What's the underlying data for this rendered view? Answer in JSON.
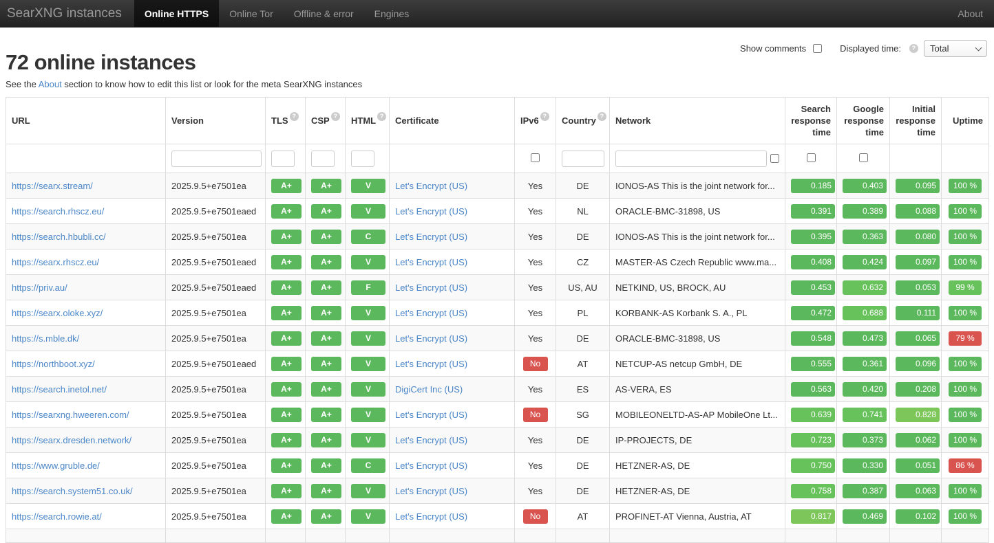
{
  "navbar": {
    "brand": "SearXNG instances",
    "tabs": [
      {
        "label": "Online HTTPS",
        "active": true
      },
      {
        "label": "Online Tor",
        "active": false
      },
      {
        "label": "Offline & error",
        "active": false
      },
      {
        "label": "Engines",
        "active": false
      }
    ],
    "about_label": "About"
  },
  "controls": {
    "show_comments_label": "Show comments",
    "displayed_time_label": "Displayed time:",
    "time_select_value": "Total"
  },
  "page": {
    "title": "72 online instances",
    "subtitle_prefix": "See the ",
    "subtitle_link": "About",
    "subtitle_suffix": " section to know how to edit this list or look for the meta SearXNG instances"
  },
  "colors": {
    "green": "#5cb85c",
    "green_light": "#68c25c",
    "green_lighter": "#7cc65a",
    "red": "#d9534f",
    "link_blue": "#4a86c8"
  },
  "table": {
    "columns": [
      {
        "label": "URL",
        "help": false,
        "align": "left"
      },
      {
        "label": "Version",
        "help": false,
        "align": "left"
      },
      {
        "label": "TLS",
        "help": true,
        "align": "left"
      },
      {
        "label": "CSP",
        "help": true,
        "align": "left"
      },
      {
        "label": "HTML",
        "help": true,
        "align": "left"
      },
      {
        "label": "Certificate",
        "help": false,
        "align": "left"
      },
      {
        "label": "IPv6",
        "help": true,
        "align": "left"
      },
      {
        "label": "Country",
        "help": true,
        "align": "left"
      },
      {
        "label": "Network",
        "help": false,
        "align": "left"
      },
      {
        "label": "Search response time",
        "help": false,
        "align": "right"
      },
      {
        "label": "Google response time",
        "help": false,
        "align": "right"
      },
      {
        "label": "Initial response time",
        "help": false,
        "align": "right"
      },
      {
        "label": "Uptime",
        "help": false,
        "align": "right"
      }
    ],
    "rows": [
      {
        "url": "https://searx.stream/",
        "version": "2025.9.5+e7501ea",
        "tls": "A+",
        "csp": "A+",
        "html": "V",
        "certificate": "Let's Encrypt (US)",
        "ipv6": "Yes",
        "country": "DE",
        "network": "IONOS-AS This is the joint network for...",
        "search_time": "0.185",
        "search_tone": "green",
        "google_time": "0.403",
        "google_tone": "green",
        "initial_time": "0.095",
        "initial_tone": "green",
        "uptime": "100 %",
        "uptime_tone": "green"
      },
      {
        "url": "https://search.rhscz.eu/",
        "version": "2025.9.5+e7501eaed",
        "tls": "A+",
        "csp": "A+",
        "html": "V",
        "certificate": "Let's Encrypt (US)",
        "ipv6": "Yes",
        "country": "NL",
        "network": "ORACLE-BMC-31898, US",
        "search_time": "0.391",
        "search_tone": "green",
        "google_time": "0.389",
        "google_tone": "green",
        "initial_time": "0.088",
        "initial_tone": "green",
        "uptime": "100 %",
        "uptime_tone": "green"
      },
      {
        "url": "https://search.hbubli.cc/",
        "version": "2025.9.5+e7501ea",
        "tls": "A+",
        "csp": "A+",
        "html": "C",
        "certificate": "Let's Encrypt (US)",
        "ipv6": "Yes",
        "country": "DE",
        "network": "IONOS-AS This is the joint network for...",
        "search_time": "0.395",
        "search_tone": "green",
        "google_time": "0.363",
        "google_tone": "green",
        "initial_time": "0.080",
        "initial_tone": "green",
        "uptime": "100 %",
        "uptime_tone": "green"
      },
      {
        "url": "https://searx.rhscz.eu/",
        "version": "2025.9.5+e7501eaed",
        "tls": "A+",
        "csp": "A+",
        "html": "V",
        "certificate": "Let's Encrypt (US)",
        "ipv6": "Yes",
        "country": "CZ",
        "network": "MASTER-AS Czech Republic www.ma...",
        "search_time": "0.408",
        "search_tone": "green",
        "google_time": "0.424",
        "google_tone": "green",
        "initial_time": "0.097",
        "initial_tone": "green",
        "uptime": "100 %",
        "uptime_tone": "green"
      },
      {
        "url": "https://priv.au/",
        "version": "2025.9.5+e7501eaed",
        "tls": "A+",
        "csp": "A+",
        "html": "F",
        "certificate": "Let's Encrypt (US)",
        "ipv6": "Yes",
        "country": "US, AU",
        "network": "NETKIND, US, BROCK, AU",
        "search_time": "0.453",
        "search_tone": "green",
        "google_time": "0.632",
        "google_tone": "green_light",
        "initial_time": "0.053",
        "initial_tone": "green",
        "uptime": "99 %",
        "uptime_tone": "green_light"
      },
      {
        "url": "https://searx.oloke.xyz/",
        "version": "2025.9.5+e7501ea",
        "tls": "A+",
        "csp": "A+",
        "html": "V",
        "certificate": "Let's Encrypt (US)",
        "ipv6": "Yes",
        "country": "PL",
        "network": "KORBANK-AS Korbank S. A., PL",
        "search_time": "0.472",
        "search_tone": "green",
        "google_time": "0.688",
        "google_tone": "green_light",
        "initial_time": "0.111",
        "initial_tone": "green",
        "uptime": "100 %",
        "uptime_tone": "green"
      },
      {
        "url": "https://s.mble.dk/",
        "version": "2025.9.5+e7501ea",
        "tls": "A+",
        "csp": "A+",
        "html": "V",
        "certificate": "Let's Encrypt (US)",
        "ipv6": "Yes",
        "country": "DE",
        "network": "ORACLE-BMC-31898, US",
        "search_time": "0.548",
        "search_tone": "green",
        "google_time": "0.473",
        "google_tone": "green",
        "initial_time": "0.065",
        "initial_tone": "green",
        "uptime": "79 %",
        "uptime_tone": "red"
      },
      {
        "url": "https://northboot.xyz/",
        "version": "2025.9.5+e7501eaed",
        "tls": "A+",
        "csp": "A+",
        "html": "V",
        "certificate": "Let's Encrypt (US)",
        "ipv6": "No",
        "country": "AT",
        "network": "NETCUP-AS netcup GmbH, DE",
        "search_time": "0.555",
        "search_tone": "green",
        "google_time": "0.361",
        "google_tone": "green",
        "initial_time": "0.096",
        "initial_tone": "green",
        "uptime": "100 %",
        "uptime_tone": "green"
      },
      {
        "url": "https://search.inetol.net/",
        "version": "2025.9.5+e7501ea",
        "tls": "A+",
        "csp": "A+",
        "html": "V",
        "certificate": "DigiCert Inc (US)",
        "ipv6": "Yes",
        "country": "ES",
        "network": "AS-VERA, ES",
        "search_time": "0.563",
        "search_tone": "green",
        "google_time": "0.420",
        "google_tone": "green",
        "initial_time": "0.208",
        "initial_tone": "green",
        "uptime": "100 %",
        "uptime_tone": "green"
      },
      {
        "url": "https://searxng.hweeren.com/",
        "version": "2025.9.5+e7501ea",
        "tls": "A+",
        "csp": "A+",
        "html": "V",
        "certificate": "Let's Encrypt (US)",
        "ipv6": "No",
        "country": "SG",
        "network": "MOBILEONELTD-AS-AP MobileOne Lt...",
        "search_time": "0.639",
        "search_tone": "green_light",
        "google_time": "0.741",
        "google_tone": "green_light",
        "initial_time": "0.828",
        "initial_tone": "green_lighter",
        "uptime": "100 %",
        "uptime_tone": "green"
      },
      {
        "url": "https://searx.dresden.network/",
        "version": "2025.9.5+e7501ea",
        "tls": "A+",
        "csp": "A+",
        "html": "V",
        "certificate": "Let's Encrypt (US)",
        "ipv6": "Yes",
        "country": "DE",
        "network": "IP-PROJECTS, DE",
        "search_time": "0.723",
        "search_tone": "green_light",
        "google_time": "0.373",
        "google_tone": "green",
        "initial_time": "0.062",
        "initial_tone": "green",
        "uptime": "100 %",
        "uptime_tone": "green"
      },
      {
        "url": "https://www.gruble.de/",
        "version": "2025.9.5+e7501ea",
        "tls": "A+",
        "csp": "A+",
        "html": "C",
        "certificate": "Let's Encrypt (US)",
        "ipv6": "Yes",
        "country": "DE",
        "network": "HETZNER-AS, DE",
        "search_time": "0.750",
        "search_tone": "green_light",
        "google_time": "0.330",
        "google_tone": "green",
        "initial_time": "0.051",
        "initial_tone": "green",
        "uptime": "86 %",
        "uptime_tone": "red"
      },
      {
        "url": "https://search.system51.co.uk/",
        "version": "2025.9.5+e7501ea",
        "tls": "A+",
        "csp": "A+",
        "html": "V",
        "certificate": "Let's Encrypt (US)",
        "ipv6": "Yes",
        "country": "DE",
        "network": "HETZNER-AS, DE",
        "search_time": "0.758",
        "search_tone": "green_light",
        "google_time": "0.387",
        "google_tone": "green",
        "initial_time": "0.063",
        "initial_tone": "green",
        "uptime": "100 %",
        "uptime_tone": "green"
      },
      {
        "url": "https://search.rowie.at/",
        "version": "2025.9.5+e7501ea",
        "tls": "A+",
        "csp": "A+",
        "html": "V",
        "certificate": "Let's Encrypt (US)",
        "ipv6": "No",
        "country": "AT",
        "network": "PROFINET-AT Vienna, Austria, AT",
        "search_time": "0.817",
        "search_tone": "green_lighter",
        "google_time": "0.469",
        "google_tone": "green",
        "initial_time": "0.102",
        "initial_tone": "green",
        "uptime": "100 %",
        "uptime_tone": "green"
      }
    ]
  }
}
